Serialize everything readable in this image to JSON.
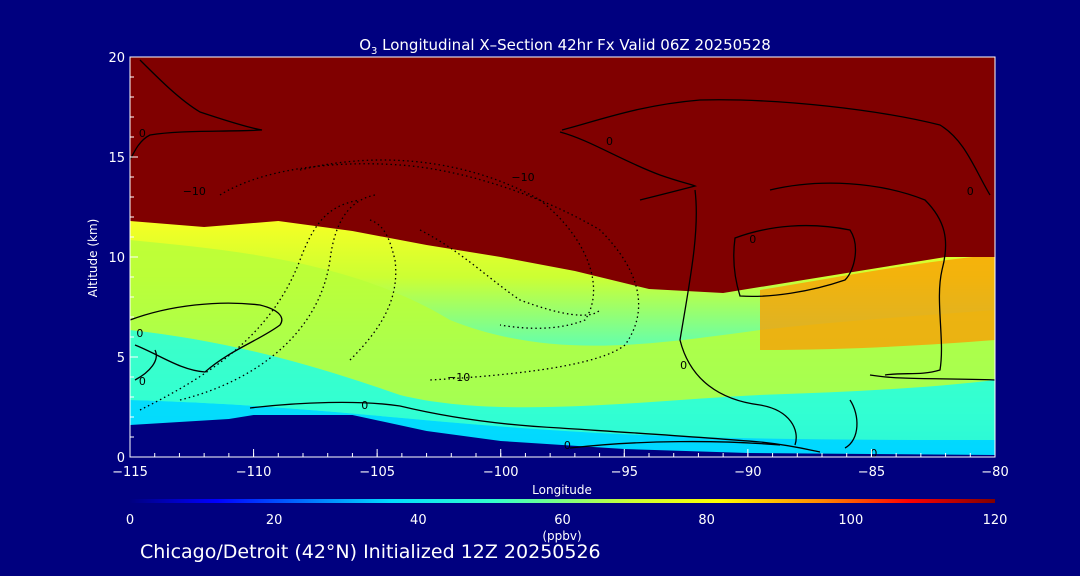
{
  "chart_data": {
    "type": "heatmap",
    "title": "O3 Longitudinal X–Section 42hr  Fx Valid 06Z 20250528",
    "title_parts": {
      "pre": "O",
      "sub": "3",
      "post": " Longitudinal X–Section 42hr  Fx Valid 06Z 20250528"
    },
    "xlabel": "Longitude",
    "ylabel": "Altitude (km)",
    "xlim": [
      -115,
      -80
    ],
    "ylim": [
      0,
      20
    ],
    "x_ticks": [
      -115,
      -110,
      -105,
      -100,
      -95,
      -90,
      -85,
      -80
    ],
    "x_tick_labels": [
      "−115",
      "−110",
      "−105",
      "−100",
      "−95",
      "−90",
      "−85",
      "−80"
    ],
    "y_ticks": [
      0,
      5,
      10,
      15,
      20
    ],
    "y_tick_labels": [
      "0",
      "5",
      "10",
      "15",
      "20"
    ],
    "colorbar": {
      "label": "(ppbv)",
      "range": [
        0,
        120
      ],
      "ticks": [
        0,
        20,
        40,
        60,
        80,
        100,
        120
      ],
      "tick_labels": [
        "0",
        "20",
        "40",
        "60",
        "80",
        "100",
        "120"
      ]
    },
    "tropopause_km": [
      {
        "lon": -115,
        "alt": 11.8
      },
      {
        "lon": -112,
        "alt": 11.5
      },
      {
        "lon": -109,
        "alt": 11.8
      },
      {
        "lon": -106,
        "alt": 11.3
      },
      {
        "lon": -103,
        "alt": 10.6
      },
      {
        "lon": -100,
        "alt": 10.0
      },
      {
        "lon": -97,
        "alt": 9.3
      },
      {
        "lon": -94,
        "alt": 8.4
      },
      {
        "lon": -91,
        "alt": 8.2
      },
      {
        "lon": -88,
        "alt": 8.8
      },
      {
        "lon": -85,
        "alt": 9.4
      },
      {
        "lon": -82,
        "alt": 10.0
      },
      {
        "lon": -80,
        "alt": 10.0
      }
    ],
    "terrain_km": [
      {
        "lon": -115,
        "alt": 1.6
      },
      {
        "lon": -111,
        "alt": 1.9
      },
      {
        "lon": -110,
        "alt": 2.1
      },
      {
        "lon": -106,
        "alt": 2.1
      },
      {
        "lon": -103,
        "alt": 1.3
      },
      {
        "lon": -100,
        "alt": 0.8
      },
      {
        "lon": -95,
        "alt": 0.4
      },
      {
        "lon": -90,
        "alt": 0.2
      },
      {
        "lon": -85,
        "alt": 0.15
      },
      {
        "lon": -80,
        "alt": 0.1
      }
    ],
    "contour_labels": [
      "0",
      "0",
      "0",
      "0",
      "0",
      "0",
      "0",
      "0",
      "0",
      "0",
      "−10",
      "−10",
      "−10"
    ],
    "colors": {
      "background": "#00007f",
      "stratosphere": "#800000",
      "terrain": "#00007f"
    }
  },
  "footer": {
    "text": "Chicago/Detroit (42°N) Initialized 12Z 20250526"
  }
}
